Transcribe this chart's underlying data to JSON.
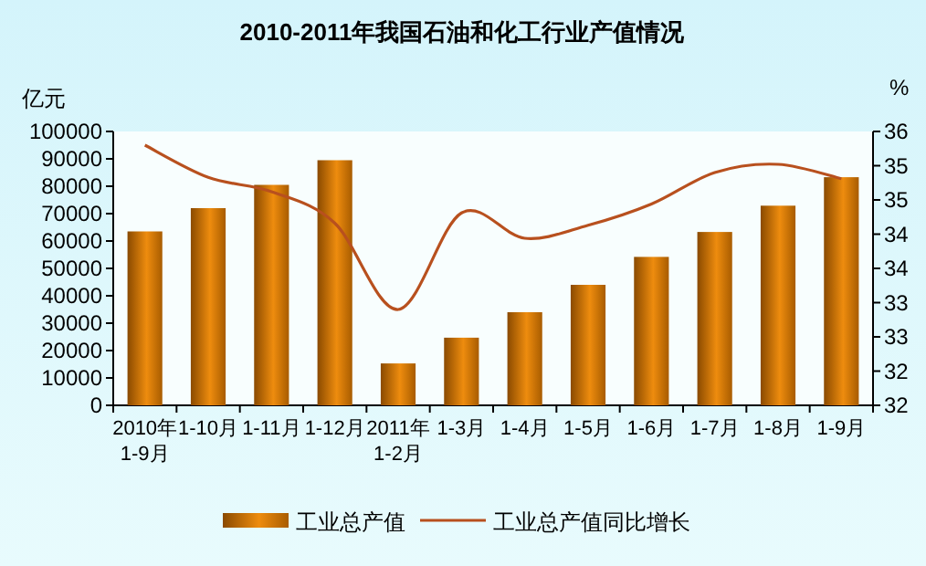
{
  "chart_data": {
    "type": "bar",
    "title": "2010-2011年我国石油和化工行业产值情况",
    "categories": [
      "2010年1-9月",
      "1-10月",
      "1-11月",
      "1-12月",
      "2011年1-2月",
      "1-3月",
      "1-4月",
      "1-5月",
      "1-6月",
      "1-7月",
      "1-8月",
      "1-9月"
    ],
    "ylabel": "亿元",
    "y2label": "%",
    "ylim": [
      0,
      100000
    ],
    "yticks": [
      0,
      10000,
      20000,
      30000,
      40000,
      50000,
      60000,
      70000,
      80000,
      90000,
      100000
    ],
    "y2lim": [
      32,
      36
    ],
    "y2ticks": [
      32,
      {
        "value": 32.5,
        "label": "32"
      },
      33,
      {
        "value": 33.5,
        "label": "33"
      },
      34,
      {
        "value": 34.5,
        "label": "34"
      },
      35,
      {
        "value": 35.5,
        "label": "35"
      },
      36
    ],
    "legend": "bottom",
    "grid": false,
    "series": [
      {
        "name": "工业总产值",
        "color": "#ee8c0e",
        "values": [
          63500,
          72000,
          80500,
          89500,
          15300,
          24700,
          34000,
          44000,
          54200,
          63300,
          72900,
          83300
        ]
      },
      {
        "name": "工业总产值同比增长",
        "type": "line",
        "axis": "y2",
        "color": "#b8501e",
        "values": [
          35.8,
          35.33,
          35.12,
          34.66,
          33.4,
          34.81,
          34.44,
          34.63,
          34.94,
          35.4,
          35.52,
          35.31
        ]
      }
    ]
  }
}
